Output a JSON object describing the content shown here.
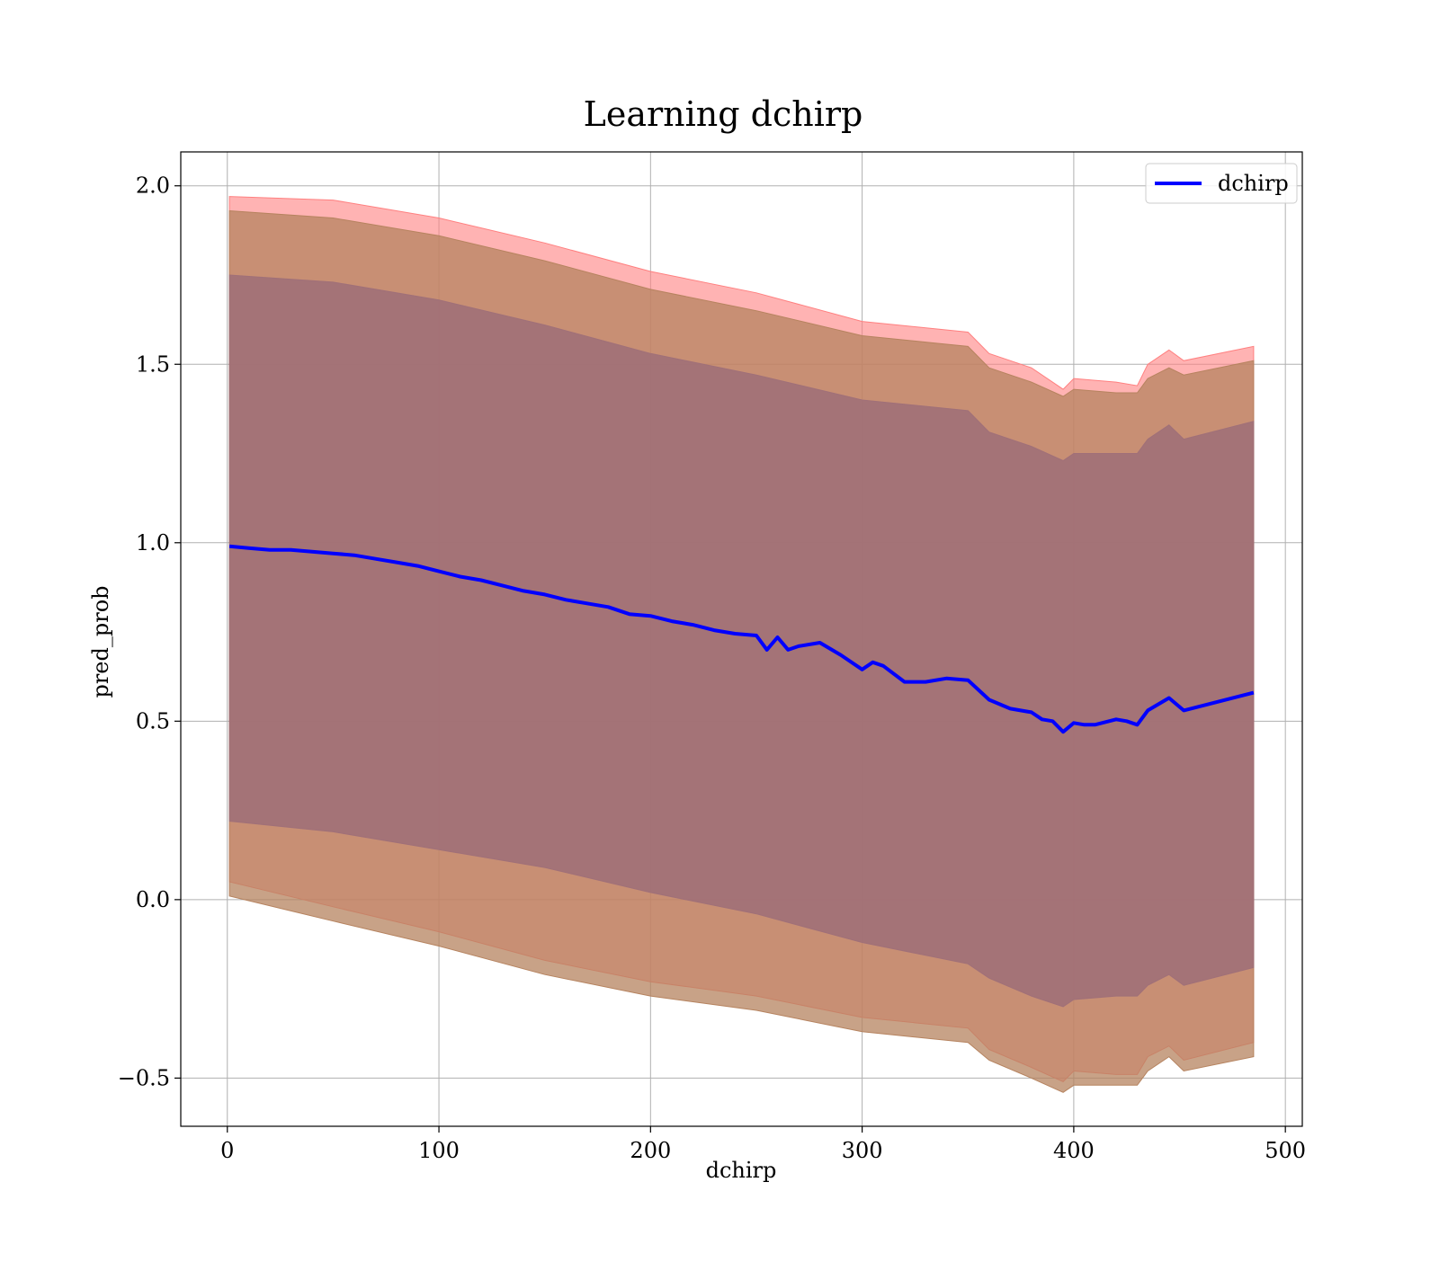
{
  "chart_data": {
    "type": "line",
    "title": "Learning dchirp",
    "xlabel": "dchirp",
    "ylabel": "pred_prob",
    "xlim": [
      -22,
      508
    ],
    "ylim": [
      -0.635,
      2.095
    ],
    "xticks": [
      0,
      100,
      200,
      300,
      400,
      500
    ],
    "xtick_labels": [
      "0",
      "100",
      "200",
      "300",
      "400",
      "500"
    ],
    "yticks": [
      -0.5,
      0.0,
      0.5,
      1.0,
      1.5,
      2.0
    ],
    "ytick_labels": [
      "−0.5",
      "0.0",
      "0.5",
      "1.0",
      "1.5",
      "2.0"
    ],
    "grid": true,
    "legend_position": "top-right",
    "colors": {
      "line": "#0000ff",
      "band_outer": "#ff8080",
      "band_middle": "#b6835f",
      "band_inner": "#a07078",
      "grid": "#b0b0b0"
    },
    "series": [
      {
        "name": "dchirp",
        "x": [
          1,
          10,
          20,
          30,
          40,
          50,
          60,
          70,
          80,
          90,
          100,
          110,
          120,
          130,
          140,
          150,
          160,
          170,
          180,
          190,
          200,
          210,
          220,
          230,
          240,
          250,
          255,
          260,
          265,
          270,
          280,
          290,
          300,
          305,
          310,
          320,
          330,
          340,
          350,
          360,
          370,
          380,
          385,
          390,
          395,
          400,
          405,
          410,
          420,
          425,
          430,
          435,
          445,
          452,
          485
        ],
        "y": [
          0.99,
          0.985,
          0.98,
          0.98,
          0.975,
          0.97,
          0.965,
          0.955,
          0.945,
          0.935,
          0.92,
          0.905,
          0.895,
          0.88,
          0.865,
          0.855,
          0.84,
          0.83,
          0.82,
          0.8,
          0.795,
          0.78,
          0.77,
          0.755,
          0.745,
          0.74,
          0.7,
          0.735,
          0.7,
          0.71,
          0.72,
          0.685,
          0.645,
          0.665,
          0.655,
          0.61,
          0.61,
          0.62,
          0.615,
          0.56,
          0.535,
          0.525,
          0.505,
          0.5,
          0.47,
          0.495,
          0.49,
          0.49,
          0.505,
          0.5,
          0.49,
          0.53,
          0.565,
          0.53,
          0.58
        ]
      }
    ],
    "bands": [
      {
        "role": "outer",
        "x": [
          1,
          50,
          100,
          150,
          200,
          250,
          300,
          350,
          360,
          380,
          395,
          400,
          420,
          430,
          435,
          445,
          452,
          485
        ],
        "upper": [
          1.97,
          1.96,
          1.91,
          1.84,
          1.76,
          1.7,
          1.62,
          1.59,
          1.53,
          1.49,
          1.43,
          1.46,
          1.45,
          1.44,
          1.5,
          1.54,
          1.51,
          1.55
        ],
        "lower": [
          0.05,
          -0.02,
          -0.09,
          -0.17,
          -0.23,
          -0.27,
          -0.33,
          -0.36,
          -0.42,
          -0.47,
          -0.51,
          -0.48,
          -0.49,
          -0.49,
          -0.44,
          -0.41,
          -0.45,
          -0.4
        ]
      },
      {
        "role": "middle",
        "x": [
          1,
          50,
          100,
          150,
          200,
          250,
          300,
          350,
          360,
          380,
          395,
          400,
          420,
          430,
          435,
          445,
          452,
          485
        ],
        "upper": [
          1.93,
          1.91,
          1.86,
          1.79,
          1.71,
          1.65,
          1.58,
          1.55,
          1.49,
          1.45,
          1.41,
          1.43,
          1.42,
          1.42,
          1.46,
          1.49,
          1.47,
          1.51
        ],
        "lower": [
          0.01,
          -0.06,
          -0.13,
          -0.21,
          -0.27,
          -0.31,
          -0.37,
          -0.4,
          -0.45,
          -0.5,
          -0.54,
          -0.52,
          -0.52,
          -0.52,
          -0.48,
          -0.44,
          -0.48,
          -0.44
        ]
      },
      {
        "role": "inner",
        "x": [
          1,
          50,
          100,
          150,
          200,
          250,
          300,
          350,
          360,
          380,
          395,
          400,
          420,
          430,
          435,
          445,
          452,
          485
        ],
        "upper": [
          1.75,
          1.73,
          1.68,
          1.61,
          1.53,
          1.47,
          1.4,
          1.37,
          1.31,
          1.27,
          1.23,
          1.25,
          1.25,
          1.25,
          1.29,
          1.33,
          1.29,
          1.34
        ],
        "lower": [
          0.22,
          0.19,
          0.14,
          0.09,
          0.02,
          -0.04,
          -0.12,
          -0.18,
          -0.22,
          -0.27,
          -0.3,
          -0.28,
          -0.27,
          -0.27,
          -0.24,
          -0.21,
          -0.24,
          -0.19
        ]
      }
    ]
  }
}
